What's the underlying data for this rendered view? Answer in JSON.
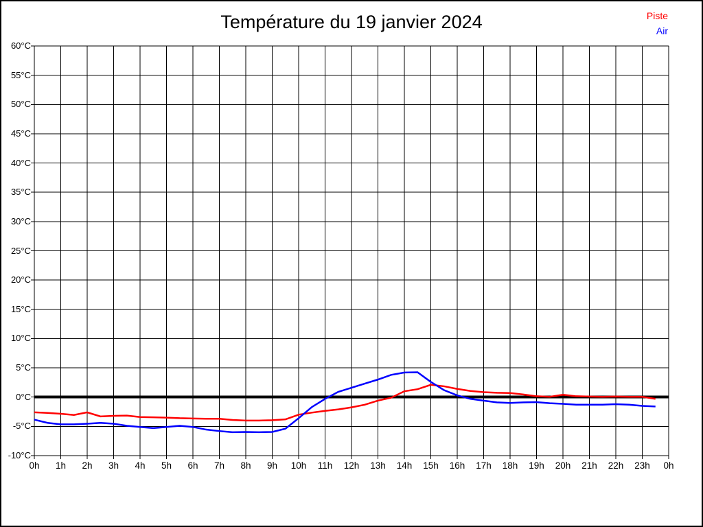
{
  "chart_data": {
    "type": "line",
    "title": "Température du 19 janvier 2024",
    "xlim_hours": [
      0,
      24
    ],
    "ylim": [
      -10,
      60
    ],
    "ytick_step": 5,
    "grid": true,
    "zero_line": "bold",
    "legend_position": "top-right",
    "ytick_labels": [
      "60°C",
      "55°C",
      "50°C",
      "45°C",
      "40°C",
      "35°C",
      "30°C",
      "25°C",
      "20°C",
      "15°C",
      "10°C",
      "5°C",
      "0°C",
      "-5°C",
      "-10°C"
    ],
    "ytick_values": [
      60,
      55,
      50,
      45,
      40,
      35,
      30,
      25,
      20,
      15,
      10,
      5,
      0,
      -5,
      -10
    ],
    "xtick_labels": [
      "0h",
      "1h",
      "2h",
      "3h",
      "4h",
      "5h",
      "6h",
      "7h",
      "8h",
      "9h",
      "10h",
      "11h",
      "12h",
      "13h",
      "14h",
      "15h",
      "16h",
      "17h",
      "18h",
      "19h",
      "20h",
      "21h",
      "22h",
      "23h",
      "0h"
    ],
    "xtick_hours": [
      0,
      1,
      2,
      3,
      4,
      5,
      6,
      7,
      8,
      9,
      10,
      11,
      12,
      13,
      14,
      15,
      16,
      17,
      18,
      19,
      20,
      21,
      22,
      23,
      24
    ],
    "x_hours": [
      0,
      0.5,
      1,
      1.5,
      2,
      2.5,
      3,
      3.5,
      4,
      4.5,
      5,
      5.5,
      6,
      6.5,
      7,
      7.5,
      8,
      8.5,
      9,
      9.5,
      10,
      10.5,
      11,
      11.5,
      12,
      12.5,
      13,
      13.5,
      14,
      14.5,
      15,
      15.5,
      16,
      16.5,
      17,
      17.5,
      18,
      18.5,
      19,
      19.5,
      20,
      20.5,
      21,
      21.5,
      22,
      22.5,
      23,
      23.5
    ],
    "series": [
      {
        "name": "Piste",
        "color": "#ff0000",
        "values": [
          -2.6,
          -2.7,
          -2.85,
          -3.05,
          -2.6,
          -3.3,
          -3.2,
          -3.15,
          -3.4,
          -3.45,
          -3.5,
          -3.6,
          -3.65,
          -3.7,
          -3.7,
          -3.9,
          -4.0,
          -4.0,
          -3.95,
          -3.8,
          -3.0,
          -2.65,
          -2.35,
          -2.1,
          -1.75,
          -1.3,
          -0.6,
          -0.1,
          1.0,
          1.35,
          2.1,
          1.85,
          1.4,
          1.05,
          0.85,
          0.75,
          0.7,
          0.45,
          0.15,
          0.05,
          0.4,
          0.15,
          0.1,
          0.05,
          0.1,
          0.05,
          0.05,
          -0.3
        ]
      },
      {
        "name": "Air",
        "color": "#0000ff",
        "values": [
          -3.85,
          -4.4,
          -4.65,
          -4.65,
          -4.55,
          -4.4,
          -4.55,
          -4.9,
          -5.1,
          -5.3,
          -5.1,
          -4.9,
          -5.1,
          -5.55,
          -5.8,
          -6.0,
          -5.95,
          -6.0,
          -5.95,
          -5.4,
          -3.6,
          -1.7,
          -0.3,
          0.9,
          1.6,
          2.3,
          3.0,
          3.8,
          4.2,
          4.25,
          2.6,
          1.2,
          0.3,
          -0.3,
          -0.6,
          -0.9,
          -1.0,
          -0.9,
          -0.85,
          -1.05,
          -1.15,
          -1.3,
          -1.3,
          -1.3,
          -1.2,
          -1.3,
          -1.5,
          -1.6
        ]
      }
    ]
  }
}
